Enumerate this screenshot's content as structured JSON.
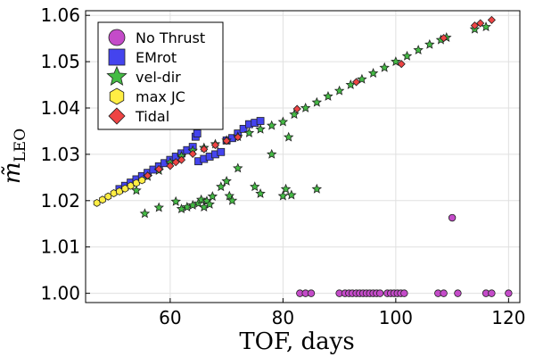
{
  "chart_data": {
    "type": "scatter",
    "title": "",
    "xlabel": "TOF, days",
    "ylabel": "m̃",
    "ylabel_subscript": "LEO",
    "xlim": [
      45,
      122
    ],
    "ylim": [
      0.998,
      1.061
    ],
    "xticks": [
      60,
      80,
      100,
      120
    ],
    "yticks": [
      1.0,
      1.01,
      1.02,
      1.03,
      1.04,
      1.05,
      1.06
    ],
    "xtick_labels": [
      "60",
      "80",
      "100",
      "120"
    ],
    "ytick_labels": [
      "1.00",
      "1.01",
      "1.02",
      "1.03",
      "1.04",
      "1.05",
      "1.06"
    ],
    "grid": true,
    "legend_position": "top-left",
    "series": [
      {
        "name": "No Thrust",
        "marker": "circle",
        "color": "#c44bc9",
        "points": [
          [
            83,
            1.0
          ],
          [
            84,
            1.0
          ],
          [
            85,
            1.0
          ],
          [
            90,
            1.0
          ],
          [
            91,
            1.0
          ],
          [
            91.7,
            1.0
          ],
          [
            92.3,
            1.0
          ],
          [
            93,
            1.0
          ],
          [
            93.6,
            1.0
          ],
          [
            94.2,
            1.0
          ],
          [
            94.8,
            1.0
          ],
          [
            95.4,
            1.0
          ],
          [
            96,
            1.0
          ],
          [
            96.6,
            1.0
          ],
          [
            97.2,
            1.0
          ],
          [
            98.5,
            1.0
          ],
          [
            99.1,
            1.0
          ],
          [
            99.7,
            1.0
          ],
          [
            100.3,
            1.0
          ],
          [
            100.9,
            1.0
          ],
          [
            101.5,
            1.0
          ],
          [
            107.5,
            1.0
          ],
          [
            108.5,
            1.0
          ],
          [
            111,
            1.0
          ],
          [
            116,
            1.0
          ],
          [
            117,
            1.0
          ],
          [
            120,
            1.0
          ],
          [
            110,
            1.0163
          ]
        ]
      },
      {
        "name": "EMrot",
        "marker": "square",
        "color": "#4444ee",
        "points": [
          [
            51,
            1.0225
          ],
          [
            52,
            1.0232
          ],
          [
            53,
            1.0239
          ],
          [
            54,
            1.0246
          ],
          [
            55,
            1.0253
          ],
          [
            56,
            1.026
          ],
          [
            57,
            1.0267
          ],
          [
            58,
            1.0274
          ],
          [
            59,
            1.0281
          ],
          [
            60,
            1.0288
          ],
          [
            61,
            1.0295
          ],
          [
            62,
            1.0302
          ],
          [
            63,
            1.0309
          ],
          [
            64,
            1.0316
          ],
          [
            64.5,
            1.0338
          ],
          [
            64.8,
            1.0345
          ],
          [
            65,
            1.0285
          ],
          [
            66,
            1.029
          ],
          [
            67,
            1.0295
          ],
          [
            68,
            1.03
          ],
          [
            69,
            1.0305
          ],
          [
            70,
            1.033
          ],
          [
            71,
            1.0335
          ],
          [
            72,
            1.0345
          ],
          [
            73,
            1.0355
          ],
          [
            74,
            1.0365
          ],
          [
            75,
            1.0368
          ],
          [
            76,
            1.0372
          ]
        ]
      },
      {
        "name": "vel-dir",
        "marker": "star",
        "color": "#44bb44",
        "points": [
          [
            54,
            1.0222
          ],
          [
            56,
            1.0252
          ],
          [
            58,
            1.0265
          ],
          [
            60,
            1.0282
          ],
          [
            62,
            1.0296
          ],
          [
            64,
            1.0308
          ],
          [
            66,
            1.0314
          ],
          [
            68,
            1.0322
          ],
          [
            70,
            1.033
          ],
          [
            72,
            1.0338
          ],
          [
            74,
            1.0346
          ],
          [
            76,
            1.0354
          ],
          [
            78,
            1.0362
          ],
          [
            80,
            1.037
          ],
          [
            82,
            1.0386
          ],
          [
            84,
            1.04
          ],
          [
            86,
            1.0412
          ],
          [
            88,
            1.0425
          ],
          [
            90,
            1.0437
          ],
          [
            92,
            1.045
          ],
          [
            94,
            1.0462
          ],
          [
            96,
            1.0475
          ],
          [
            98,
            1.0487
          ],
          [
            100,
            1.05
          ],
          [
            102,
            1.0512
          ],
          [
            104,
            1.0525
          ],
          [
            106,
            1.0537
          ],
          [
            108,
            1.0547
          ],
          [
            109,
            1.0552
          ],
          [
            114,
            1.057
          ],
          [
            116,
            1.0575
          ],
          [
            55.5,
            1.0172
          ],
          [
            58,
            1.0185
          ],
          [
            61,
            1.0198
          ],
          [
            62,
            1.0182
          ],
          [
            63,
            1.0186
          ],
          [
            64,
            1.019
          ],
          [
            65,
            1.0194
          ],
          [
            65.5,
            1.0202
          ],
          [
            66,
            1.0186
          ],
          [
            66.5,
            1.0199
          ],
          [
            67,
            1.0192
          ],
          [
            67.5,
            1.0209
          ],
          [
            69,
            1.023
          ],
          [
            70,
            1.0242
          ],
          [
            70.5,
            1.021
          ],
          [
            71,
            1.02
          ],
          [
            72,
            1.027
          ],
          [
            75,
            1.023
          ],
          [
            76,
            1.0215
          ],
          [
            78,
            1.03
          ],
          [
            80,
            1.021
          ],
          [
            80.5,
            1.0225
          ],
          [
            81.5,
            1.0212
          ],
          [
            81,
            1.0337
          ],
          [
            86,
            1.0225
          ]
        ]
      },
      {
        "name": "max JC",
        "marker": "hexagon",
        "color": "#ffee44",
        "points": [
          [
            47,
            1.0195
          ],
          [
            48,
            1.0202
          ],
          [
            49,
            1.0209
          ],
          [
            50,
            1.0216
          ],
          [
            51,
            1.022
          ],
          [
            52,
            1.0226
          ],
          [
            53,
            1.0232
          ],
          [
            54,
            1.0238
          ],
          [
            55,
            1.0244
          ]
        ]
      },
      {
        "name": "Tidal",
        "marker": "diamond",
        "color": "#ee4444",
        "points": [
          [
            56,
            1.0254
          ],
          [
            58,
            1.0268
          ],
          [
            60,
            1.0275
          ],
          [
            61,
            1.0283
          ],
          [
            62,
            1.0288
          ],
          [
            64,
            1.0301
          ],
          [
            66,
            1.0311
          ],
          [
            68,
            1.032
          ],
          [
            70,
            1.0329
          ],
          [
            72,
            1.0337
          ],
          [
            82.5,
            1.0398
          ],
          [
            93,
            1.0456
          ],
          [
            101,
            1.0495
          ],
          [
            108.5,
            1.0551
          ],
          [
            114,
            1.0578
          ],
          [
            115,
            1.0583
          ],
          [
            117,
            1.059
          ]
        ]
      }
    ]
  }
}
